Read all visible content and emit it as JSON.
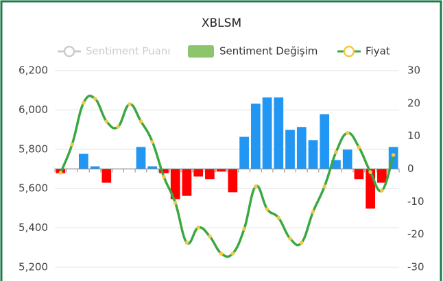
{
  "chart_data": {
    "type": "bar-line",
    "title": "XBLSM",
    "categories": [
      null,
      null,
      null,
      null,
      null,
      null,
      null,
      null,
      null,
      null,
      null,
      null,
      null,
      null,
      null,
      null,
      null,
      null,
      null,
      null,
      null,
      null,
      null,
      null,
      null,
      null,
      null,
      null,
      null,
      null
    ],
    "series": [
      {
        "name": "Sentiment Puanı",
        "color": "#cccccc",
        "hidden": true,
        "type": "line",
        "values": [
          null,
          null,
          null,
          null,
          null,
          null,
          null,
          null,
          null,
          null,
          null,
          null,
          null,
          null,
          null,
          null,
          null,
          null,
          null,
          null,
          null,
          null,
          null,
          null,
          null,
          null,
          null,
          null,
          null,
          null
        ]
      },
      {
        "name": "Sentiment Değişim",
        "color": "#8cc56b",
        "type": "bar",
        "axis": "y2",
        "positive_color": "#2196f3",
        "negative_color": "#ff0000",
        "values": [
          -1.3,
          0,
          4.6,
          0.8,
          -4.2,
          0,
          0,
          6.7,
          0.8,
          -1.3,
          -9.2,
          -8.2,
          -2.3,
          -3.1,
          -0.8,
          -7.1,
          9.8,
          19.9,
          21.8,
          21.8,
          11.9,
          12.8,
          8.8,
          16.7,
          2.7,
          5.9,
          -3.1,
          -12.1,
          -4.2,
          6.7
        ]
      },
      {
        "name": "Fiyat",
        "color": "#3aa842",
        "marker_color": "#f5c842",
        "type": "line",
        "values": [
          5681,
          5824,
          6036,
          6057,
          5942,
          5914,
          6029,
          5942,
          5838,
          5660,
          5528,
          5325,
          5402,
          5357,
          5270,
          5270,
          5395,
          5611,
          5496,
          5451,
          5346,
          5325,
          5482,
          5611,
          5785,
          5883,
          5810,
          5684,
          5590,
          5771
        ]
      }
    ],
    "ylim": [
      5200,
      6200
    ],
    "yticks": [
      {
        "value": 5200,
        "label": "5,200"
      },
      {
        "value": 5400,
        "label": "5,400"
      },
      {
        "value": 5600,
        "label": "5,600"
      },
      {
        "value": 5800,
        "label": "5,800"
      },
      {
        "value": 6000,
        "label": "6,000"
      },
      {
        "value": 6200,
        "label": "6,200"
      }
    ],
    "y2lim": [
      -30,
      30
    ],
    "y2ticks": [
      -30,
      -20,
      -10,
      0,
      10,
      20,
      30
    ],
    "grid": true
  }
}
